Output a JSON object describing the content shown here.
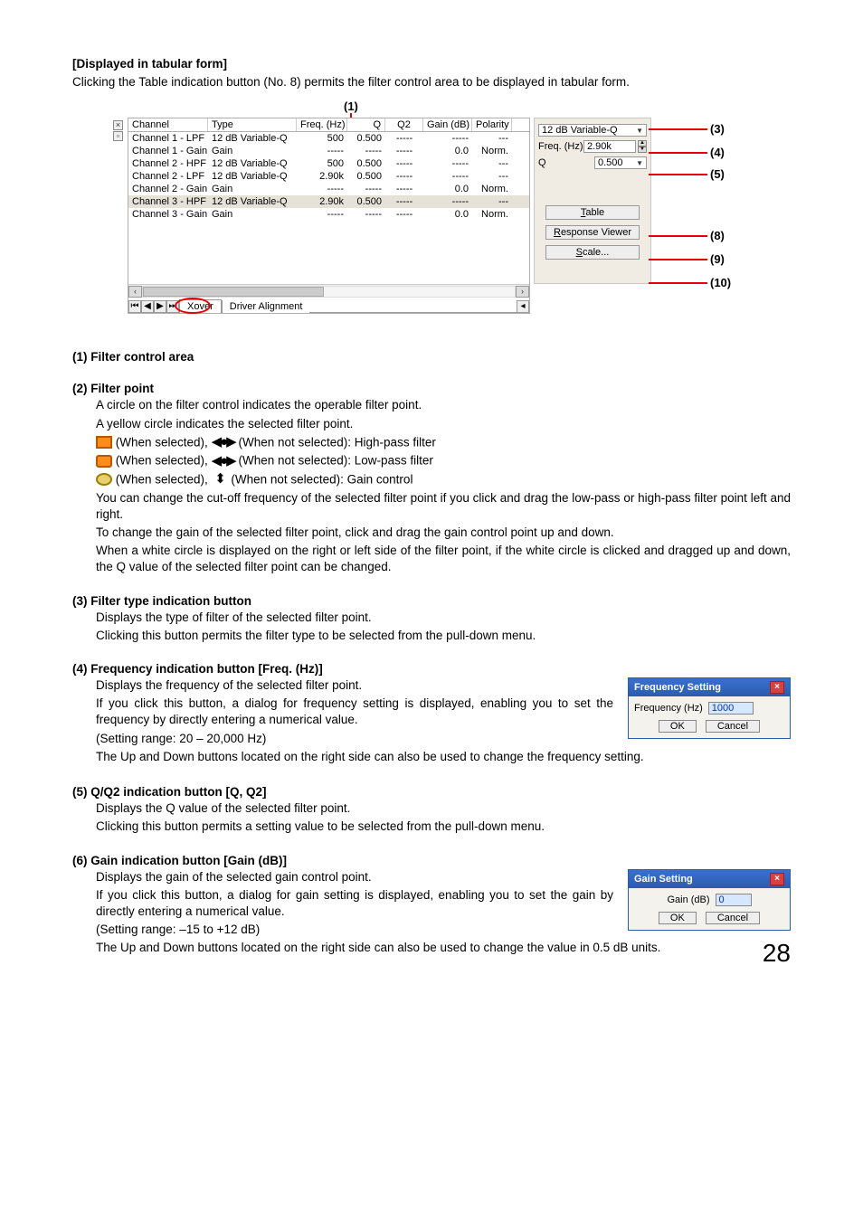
{
  "intro": {
    "heading": "[Displayed in tabular form]",
    "line": "Clicking the Table indication button (No. 8) permits the filter control area to be displayed in tabular form."
  },
  "callouts": {
    "c1": "(1)",
    "c3": "(3)",
    "c4": "(4)",
    "c5": "(5)",
    "c8": "(8)",
    "c9": "(9)",
    "c10": "(10)"
  },
  "table": {
    "headers": [
      "Channel",
      "Type",
      "Freq. (Hz)",
      "Q",
      "Q2",
      "Gain (dB)",
      "Polarity"
    ],
    "rows": [
      [
        "Channel 1 - LPF",
        "12 dB Variable-Q",
        "500",
        "0.500",
        "-----",
        "-----",
        "---"
      ],
      [
        "Channel 1 - Gain",
        "Gain",
        "-----",
        "-----",
        "-----",
        "0.0",
        "Norm."
      ],
      [
        "Channel 2 - HPF",
        "12 dB Variable-Q",
        "500",
        "0.500",
        "-----",
        "-----",
        "---"
      ],
      [
        "Channel 2 - LPF",
        "12 dB Variable-Q",
        "2.90k",
        "0.500",
        "-----",
        "-----",
        "---"
      ],
      [
        "Channel 2 - Gain",
        "Gain",
        "-----",
        "-----",
        "-----",
        "0.0",
        "Norm."
      ],
      [
        "Channel 3 - HPF",
        "12 dB Variable-Q",
        "2.90k",
        "0.500",
        "-----",
        "-----",
        "---"
      ],
      [
        "Channel 3 - Gain",
        "Gain",
        "-----",
        "-----",
        "-----",
        "0.0",
        "Norm."
      ]
    ]
  },
  "tabs": {
    "nav_first": "⏮",
    "nav_prev": "◀",
    "nav_next": "▶",
    "nav_last": "⏭",
    "tab1": "Xover",
    "tab2": "Driver Alignment"
  },
  "right_panel": {
    "type_value": "12 dB Variable-Q",
    "freq_label": "Freq. (Hz)",
    "freq_value": "2.90k",
    "q_label": "Q",
    "q_value": "0.500",
    "btn_table": "Table",
    "btn_table_ul": "T",
    "btn_resp": "Response Viewer",
    "btn_resp_ul": "R",
    "btn_scale": "Scale...",
    "btn_scale_ul": "S"
  },
  "sec1": {
    "title": "(1) Filter control area"
  },
  "sec2": {
    "title": "(2) Filter point",
    "l1": "A circle on the filter control indicates the operable filter point.",
    "l2": "A yellow circle indicates the selected filter point.",
    "hp": "(When selected),",
    "hp2": "(When not selected): High-pass filter",
    "lp": "(When selected),",
    "lp2": "(When not selected): Low-pass filter",
    "gc": "(When selected),",
    "gc2": "(When not selected): Gain control",
    "p1": "You can change the cut-off frequency of the selected filter point if you click and drag the low-pass or high-pass filter point left and right.",
    "p2": "To change the gain of the selected filter point, click and drag the gain control point up and down.",
    "p3": "When a white circle is displayed on the right or left side of the filter point, if the white circle is clicked and dragged up and down, the Q value of the selected filter point can be changed."
  },
  "sec3": {
    "title": "(3) Filter type indication button",
    "l1": "Displays the type of filter of the selected filter point.",
    "l2": "Clicking this button permits the filter type to be selected from the pull-down menu."
  },
  "sec4": {
    "title": "(4) Frequency indication button [Freq. (Hz)]",
    "l1": "Displays the frequency of the selected filter point.",
    "l2": "If you click this button, a dialog for frequency setting is displayed, enabling you to set the frequency by directly entering a numerical value.",
    "l3": "(Setting range: 20 – 20,000 Hz)",
    "l4": "The Up and Down buttons located on the right side can also be used to change the frequency setting."
  },
  "freq_dialog": {
    "title": "Frequency Setting",
    "label": "Frequency (Hz)",
    "value": "1000",
    "ok": "OK",
    "cancel": "Cancel"
  },
  "sec5": {
    "title": "(5) Q/Q2 indication button [Q, Q2]",
    "l1": "Displays the Q value of the selected filter point.",
    "l2": "Clicking this button permits a setting value to be selected from the pull-down menu."
  },
  "sec6": {
    "title": "(6) Gain indication button [Gain (dB)]",
    "l1": "Displays the gain of the selected gain control point.",
    "l2": "If you click this button, a dialog for gain setting is displayed, enabling you to set the gain by directly entering a numerical value.",
    "l3": "(Setting range: –15 to +12 dB)",
    "l4": "The Up and Down buttons located on the right side can also be used to change the value in 0.5 dB units."
  },
  "gain_dialog": {
    "title": "Gain Setting",
    "label": "Gain (dB)",
    "value": "0",
    "ok": "OK",
    "cancel": "Cancel"
  },
  "page_number": "28"
}
